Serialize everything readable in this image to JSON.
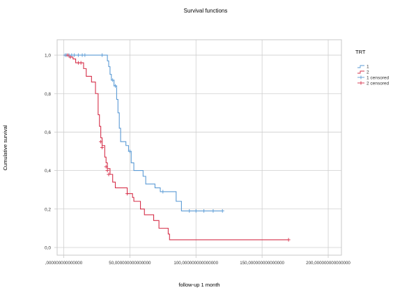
{
  "colors": {
    "background": "#ffffff",
    "plot_border": "#c8c8c8",
    "grid": "#cfcfcf",
    "text": "#333333",
    "series_1": "#5b9bd5",
    "series_2": "#d6304a"
  },
  "chart_data": {
    "type": "line",
    "title": "Survival functions",
    "xlabel": "follow-up 1 month",
    "ylabel": "Cumulative survival",
    "xlim": [
      -5,
      210
    ],
    "ylim": [
      -0.04,
      1.08
    ],
    "xticks": [
      0,
      50,
      100,
      150,
      200
    ],
    "xtick_labels": [
      ",000000000000000",
      "50,000000000000000",
      "100,000000000000000",
      "150,000000000000000",
      "200,000000000000000"
    ],
    "yticks": [
      0,
      0.2,
      0.4,
      0.6,
      0.8,
      1.0
    ],
    "ytick_labels": [
      "0,0",
      "0,2",
      "0,4",
      "0,6",
      "0,8",
      "1,0"
    ],
    "grid": true,
    "legend": {
      "title": "TRT",
      "placement": "right",
      "entries": [
        {
          "label": "1",
          "kind": "step",
          "series": 0
        },
        {
          "label": "2",
          "kind": "step",
          "series": 1
        },
        {
          "label": "1 censored",
          "kind": "censor",
          "series": 0
        },
        {
          "label": "2 censored",
          "kind": "censor",
          "series": 1
        }
      ]
    },
    "series": [
      {
        "name": "1",
        "color": "#5b9bd5",
        "steps": [
          [
            0,
            1.0
          ],
          [
            33,
            0.97
          ],
          [
            34,
            0.94
          ],
          [
            35,
            0.9
          ],
          [
            36,
            0.87
          ],
          [
            38,
            0.84
          ],
          [
            40,
            0.77
          ],
          [
            41,
            0.7
          ],
          [
            42,
            0.62
          ],
          [
            43,
            0.55
          ],
          [
            47,
            0.53
          ],
          [
            49,
            0.5
          ],
          [
            51,
            0.44
          ],
          [
            53,
            0.4
          ],
          [
            60,
            0.37
          ],
          [
            62,
            0.33
          ],
          [
            69,
            0.31
          ],
          [
            73,
            0.29
          ],
          [
            85,
            0.24
          ],
          [
            89,
            0.19
          ],
          [
            120,
            0.19
          ]
        ],
        "censored": [
          [
            1,
            1.0
          ],
          [
            2,
            1.0
          ],
          [
            4,
            1.0
          ],
          [
            6,
            1.0
          ],
          [
            8,
            1.0
          ],
          [
            11,
            1.0
          ],
          [
            14,
            1.0
          ],
          [
            16,
            1.0
          ],
          [
            29,
            1.0
          ],
          [
            37,
            0.87
          ],
          [
            39,
            0.84
          ],
          [
            50,
            0.5
          ],
          [
            75,
            0.29
          ],
          [
            95,
            0.19
          ],
          [
            100,
            0.19
          ],
          [
            106,
            0.19
          ],
          [
            113,
            0.19
          ],
          [
            120,
            0.19
          ]
        ]
      },
      {
        "name": "2",
        "color": "#d6304a",
        "steps": [
          [
            0,
            1.0
          ],
          [
            4,
            0.99
          ],
          [
            7,
            0.98
          ],
          [
            9,
            0.96
          ],
          [
            15,
            0.93
          ],
          [
            17,
            0.89
          ],
          [
            21,
            0.86
          ],
          [
            24,
            0.8
          ],
          [
            26,
            0.69
          ],
          [
            27,
            0.63
          ],
          [
            28,
            0.57
          ],
          [
            29,
            0.53
          ],
          [
            31,
            0.47
          ],
          [
            32,
            0.44
          ],
          [
            33,
            0.41
          ],
          [
            35,
            0.38
          ],
          [
            37,
            0.34
          ],
          [
            39,
            0.31
          ],
          [
            48,
            0.28
          ],
          [
            52,
            0.26
          ],
          [
            53,
            0.24
          ],
          [
            58,
            0.2
          ],
          [
            61,
            0.17
          ],
          [
            68,
            0.14
          ],
          [
            72,
            0.1
          ],
          [
            79,
            0.07
          ],
          [
            80,
            0.04
          ],
          [
            170,
            0.04
          ]
        ],
        "censored": [
          [
            3,
            1.0
          ],
          [
            5,
            0.99
          ],
          [
            11,
            0.96
          ],
          [
            13,
            0.96
          ],
          [
            28,
            0.55
          ],
          [
            29,
            0.52
          ],
          [
            32,
            0.42
          ],
          [
            33,
            0.4
          ],
          [
            34,
            0.38
          ],
          [
            48,
            0.28
          ],
          [
            170,
            0.04
          ]
        ]
      }
    ]
  }
}
